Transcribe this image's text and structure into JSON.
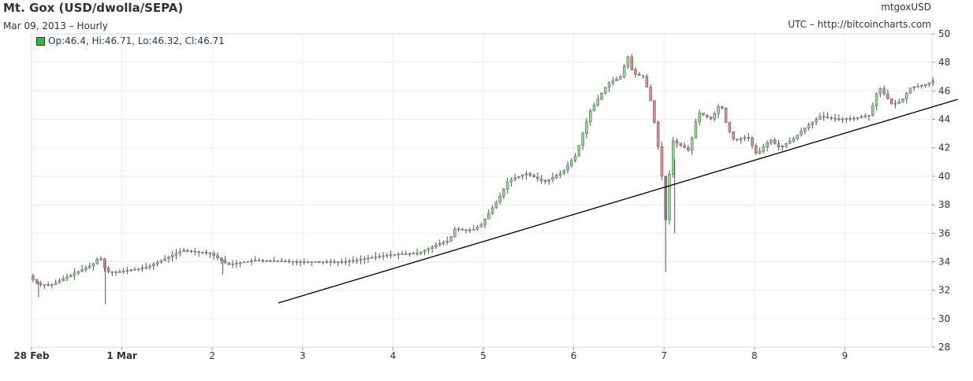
{
  "header": {
    "title": "Mt. Gox (USD/dwolla/SEPA)",
    "subtitle": "Mar 09, 2013 – Hourly",
    "symbol": "mtgoxUSD",
    "source": "UTC – http://bitcoincharts.com"
  },
  "legend": {
    "ohlc_text": "Op:46.4, Hi:46.71, Lo:46.32, Cl:46.71",
    "up_color": "#3fb13f"
  },
  "chart_data": {
    "type": "candlestick",
    "x_tick_labels": [
      "28 Feb",
      "1 Mar",
      "2",
      "3",
      "4",
      "5",
      "6",
      "7",
      "8",
      "9"
    ],
    "x_tick_bold": [
      true,
      true,
      false,
      false,
      false,
      false,
      false,
      false,
      false,
      false
    ],
    "y_ticks": [
      28,
      30,
      32,
      34,
      36,
      38,
      40,
      42,
      44,
      46,
      48,
      50
    ],
    "ylim": [
      28,
      50
    ],
    "x_range_days": [
      0,
      10.25
    ],
    "grid": true,
    "colors": {
      "up": "#8fd68f",
      "down": "#d88c8c",
      "wick": "#555555",
      "trend": "#000000"
    },
    "waypoints": [
      [
        0,
        33.0
      ],
      [
        0.1,
        32.4
      ],
      [
        0.25,
        32.4
      ],
      [
        0.5,
        33.2
      ],
      [
        0.7,
        33.8
      ],
      [
        0.78,
        34.4
      ],
      [
        0.85,
        33.3
      ],
      [
        1.0,
        33.3
      ],
      [
        1.3,
        33.6
      ],
      [
        1.5,
        34.2
      ],
      [
        1.7,
        34.8
      ],
      [
        2.0,
        34.6
      ],
      [
        2.2,
        33.8
      ],
      [
        2.5,
        34.1
      ],
      [
        3.0,
        34.0
      ],
      [
        3.5,
        34.0
      ],
      [
        4.0,
        34.5
      ],
      [
        4.3,
        34.6
      ],
      [
        4.55,
        35.3
      ],
      [
        4.65,
        35.5
      ],
      [
        4.7,
        36.3
      ],
      [
        4.9,
        36.2
      ],
      [
        5.0,
        36.6
      ],
      [
        5.2,
        38.5
      ],
      [
        5.3,
        39.7
      ],
      [
        5.5,
        40.2
      ],
      [
        5.7,
        39.6
      ],
      [
        5.9,
        40.3
      ],
      [
        6.05,
        41.5
      ],
      [
        6.2,
        44.5
      ],
      [
        6.4,
        46.5
      ],
      [
        6.55,
        47.0
      ],
      [
        6.62,
        48.5
      ],
      [
        6.68,
        47.2
      ],
      [
        6.8,
        47.0
      ],
      [
        6.88,
        45.2
      ],
      [
        6.95,
        42.5
      ],
      [
        7.0,
        40.0
      ],
      [
        7.02,
        34.2
      ],
      [
        7.05,
        38.0
      ],
      [
        7.12,
        42.5
      ],
      [
        7.3,
        41.8
      ],
      [
        7.4,
        44.5
      ],
      [
        7.55,
        44.0
      ],
      [
        7.65,
        45.2
      ],
      [
        7.72,
        43.5
      ],
      [
        7.8,
        42.5
      ],
      [
        7.95,
        42.8
      ],
      [
        8.05,
        41.5
      ],
      [
        8.2,
        42.6
      ],
      [
        8.3,
        42.0
      ],
      [
        8.45,
        42.6
      ],
      [
        8.6,
        43.5
      ],
      [
        8.75,
        44.2
      ],
      [
        8.95,
        44.0
      ],
      [
        9.15,
        44.1
      ],
      [
        9.3,
        44.3
      ],
      [
        9.4,
        46.3
      ],
      [
        9.55,
        45.0
      ],
      [
        9.65,
        45.3
      ],
      [
        9.75,
        46.2
      ],
      [
        9.9,
        46.4
      ],
      [
        10.0,
        46.7
      ]
    ],
    "trend_line": {
      "x": [
        2.73,
        10.25
      ],
      "y": [
        31.1,
        45.4
      ]
    }
  }
}
